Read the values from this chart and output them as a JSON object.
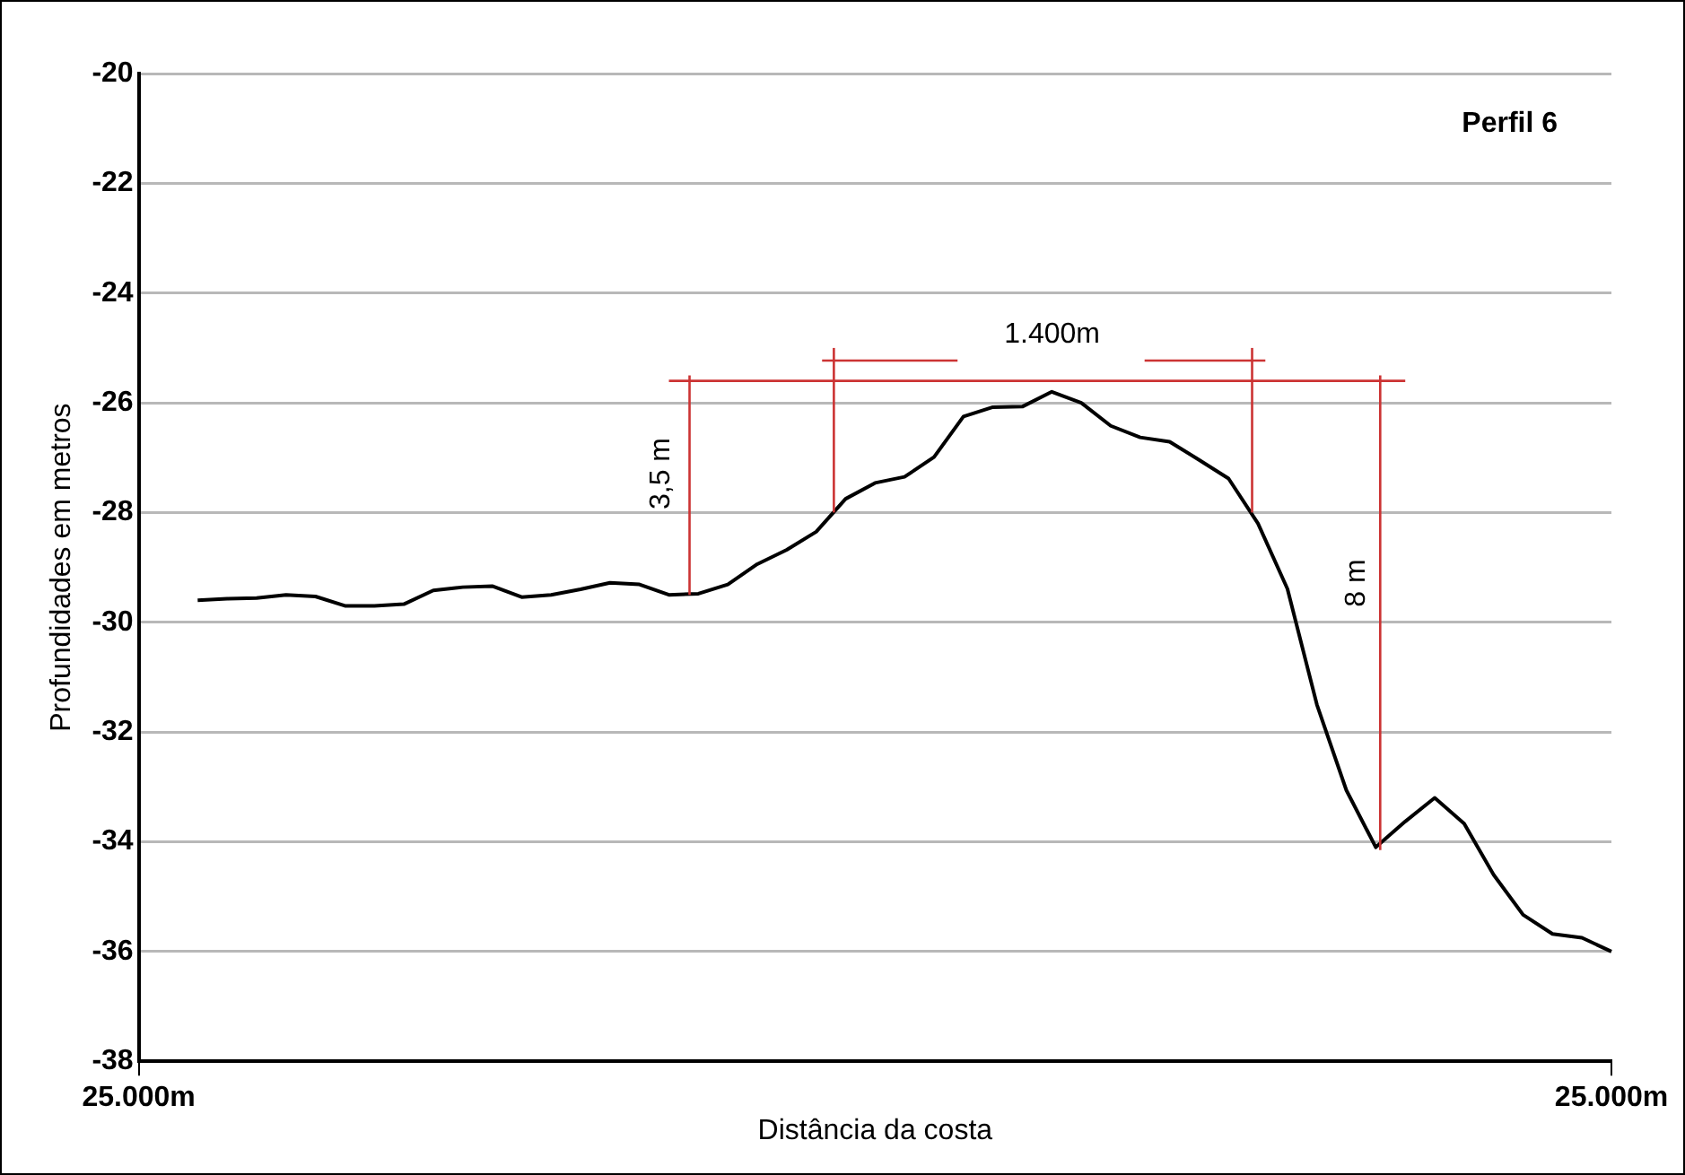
{
  "chart_data": {
    "type": "line",
    "title": "Perfil 6",
    "xlabel": "Distância da costa",
    "ylabel": "Profundidades em metros",
    "categories": [
      "25.000m",
      null,
      null,
      null,
      null,
      null,
      null,
      null,
      null,
      null,
      null,
      null,
      null,
      null,
      null,
      null,
      null,
      null,
      null,
      null,
      null,
      null,
      null,
      null,
      null,
      null,
      null,
      null,
      null,
      null,
      null,
      null,
      null,
      null,
      null,
      null,
      null,
      null,
      null,
      null,
      null,
      null,
      null,
      null,
      null,
      null,
      null,
      null,
      null,
      null,
      "25.000m"
    ],
    "ylim": [
      -38,
      -20
    ],
    "yticks": [
      -38,
      -36,
      -34,
      -32,
      -30,
      -28,
      -26,
      -24,
      -22,
      -20
    ],
    "grid": "y",
    "legend": false,
    "marker": "none",
    "line_style": "solid",
    "series": [
      {
        "color": "#000000",
        "values": [
          null,
          null,
          -29.6,
          -29.57,
          -29.56,
          -29.5,
          -29.53,
          -29.7,
          -29.7,
          -29.67,
          -29.42,
          -29.36,
          -29.34,
          -29.54,
          -29.5,
          -29.4,
          -29.28,
          -29.31,
          -29.5,
          -29.48,
          -29.31,
          -28.94,
          -28.68,
          -28.35,
          -27.75,
          -27.46,
          -27.35,
          -26.99,
          -26.25,
          -26.08,
          -26.07,
          -25.8,
          -26.0,
          -26.42,
          -26.63,
          -26.71,
          -27.04,
          -27.38,
          -28.2,
          -29.39,
          -31.5,
          -33.06,
          -34.1,
          -33.63,
          -33.2,
          -33.67,
          -34.6,
          -35.33,
          -35.68,
          -35.75,
          -36.0
        ]
      },
      {
        "color": "#cc3333",
        "values": [
          null,
          null,
          null,
          null,
          null,
          null,
          null,
          null,
          null,
          null,
          null,
          null,
          null,
          null,
          null,
          null,
          null,
          null,
          -25.6,
          -25.6,
          -25.6,
          -25.6,
          -25.6,
          -25.6,
          -25.6,
          -25.6,
          -25.6,
          -25.6,
          -25.6,
          -25.6,
          -25.6,
          -25.6,
          -25.6,
          -25.6,
          -25.6,
          -25.6,
          -25.6,
          -25.6,
          -25.6,
          -25.6,
          -25.6,
          -25.6,
          -25.6,
          -25.6,
          null,
          null,
          null,
          null,
          null,
          null,
          null
        ]
      }
    ],
    "annotations": [
      "3,5 m",
      "1.400m",
      "8 m"
    ]
  }
}
